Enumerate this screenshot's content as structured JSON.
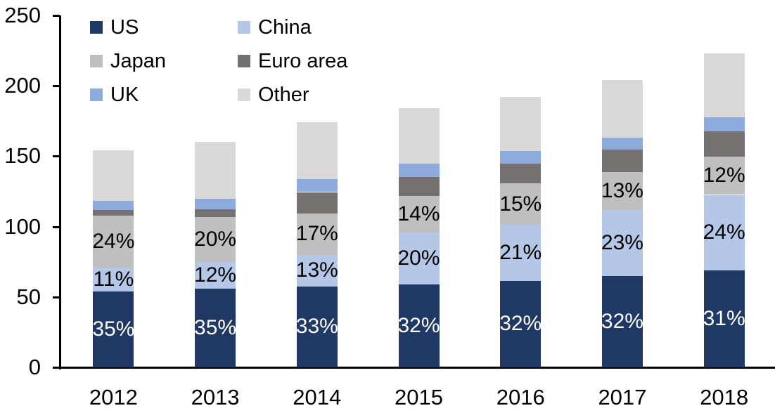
{
  "chart_data": {
    "type": "bar",
    "stacked": true,
    "title": "",
    "xlabel": "",
    "ylabel": "",
    "categories": [
      "2012",
      "2013",
      "2014",
      "2015",
      "2016",
      "2017",
      "2018"
    ],
    "ylim": [
      0,
      250
    ],
    "yticks": [
      0,
      50,
      100,
      150,
      200,
      250
    ],
    "grid": false,
    "legend_position": "top-left",
    "axis_color": "#000000",
    "series": [
      {
        "name": "US",
        "color": "#1f3864",
        "values": [
          54,
          56,
          57.5,
          59,
          61.5,
          65,
          69
        ],
        "labels": [
          "35%",
          "35%",
          "33%",
          "32%",
          "32%",
          "32%",
          "31%"
        ],
        "label_color": "#ffffff"
      },
      {
        "name": "China",
        "color": "#b4c7e7",
        "values": [
          17,
          19,
          22.5,
          37,
          40,
          47,
          53.5
        ],
        "labels": [
          "11%",
          "12%",
          "13%",
          "20%",
          "21%",
          "23%",
          "24%"
        ],
        "label_color": "#000000"
      },
      {
        "name": "Japan",
        "color": "#bfbfbf",
        "values": [
          37,
          32,
          29.5,
          26,
          29,
          26.5,
          27
        ],
        "labels": [
          "24%",
          "20%",
          "17%",
          "14%",
          "15%",
          "13%",
          "12%"
        ],
        "label_color": "#000000"
      },
      {
        "name": "Euro area",
        "color": "#767171",
        "values": [
          4,
          5.5,
          15,
          13,
          14,
          16,
          18
        ]
      },
      {
        "name": "UK",
        "color": "#8faadc",
        "values": [
          6.5,
          7.5,
          9,
          9.5,
          9,
          8.5,
          10
        ]
      },
      {
        "name": "Other",
        "color": "#d9d9d9",
        "values": [
          35.5,
          40,
          40.5,
          39.5,
          38.5,
          41,
          45.5
        ]
      }
    ]
  }
}
